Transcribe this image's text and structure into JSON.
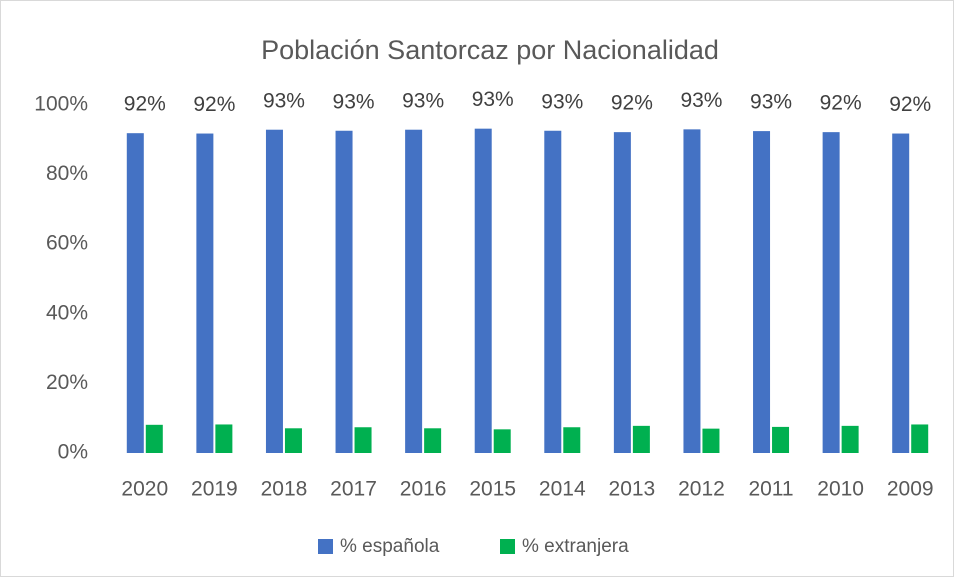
{
  "chart_data": {
    "type": "bar",
    "title": "Población Santorcaz por Nacionalidad",
    "categories": [
      "2020",
      "2019",
      "2018",
      "2017",
      "2016",
      "2015",
      "2014",
      "2013",
      "2012",
      "2011",
      "2010",
      "2009"
    ],
    "series": [
      {
        "name": "% española",
        "color": "#4472c4",
        "values": [
          91.9,
          91.8,
          92.9,
          92.6,
          92.9,
          93.2,
          92.6,
          92.2,
          93.0,
          92.5,
          92.2,
          91.8
        ],
        "value_labels": [
          "92%",
          "92%",
          "93%",
          "93%",
          "93%",
          "93%",
          "93%",
          "92%",
          "93%",
          "93%",
          "92%",
          "92%"
        ]
      },
      {
        "name": "% extranjera",
        "color": "#00b050",
        "values": [
          8.1,
          8.2,
          7.1,
          7.4,
          7.1,
          6.8,
          7.4,
          7.8,
          7.0,
          7.5,
          7.8,
          8.2
        ]
      }
    ],
    "ylim": [
      0,
      100
    ],
    "yticks": [
      {
        "value": 0,
        "label": "0%"
      },
      {
        "value": 20,
        "label": "20%"
      },
      {
        "value": 40,
        "label": "40%"
      },
      {
        "value": 60,
        "label": "60%"
      },
      {
        "value": 80,
        "label": "80%"
      },
      {
        "value": 100,
        "label": "100%"
      }
    ],
    "grid": false,
    "legend": "bottom"
  }
}
